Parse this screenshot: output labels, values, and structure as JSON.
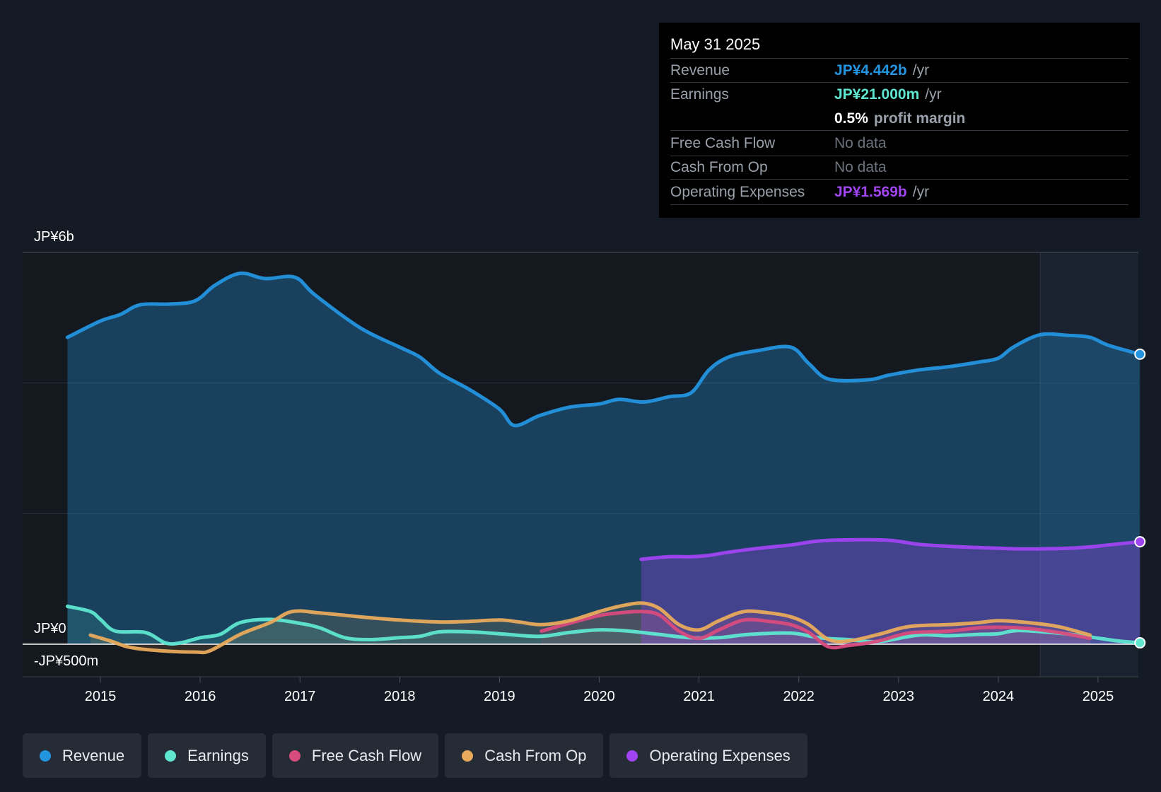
{
  "tooltip": {
    "date": "May 31 2025",
    "rows": {
      "revenue": {
        "label": "Revenue",
        "value": "JP¥4.442b",
        "unit": "/yr"
      },
      "earnings": {
        "label": "Earnings",
        "value": "JP¥21.000m",
        "unit": "/yr"
      },
      "margin": {
        "value": "0.5%",
        "unit": "profit margin"
      },
      "fcf": {
        "label": "Free Cash Flow",
        "value": "No data"
      },
      "cfo": {
        "label": "Cash From Op",
        "value": "No data"
      },
      "opex": {
        "label": "Operating Expenses",
        "value": "JP¥1.569b",
        "unit": "/yr"
      }
    }
  },
  "legend": {
    "revenue": "Revenue",
    "earnings": "Earnings",
    "fcf": "Free Cash Flow",
    "cfo": "Cash From Op",
    "opex": "Operating Expenses"
  },
  "colors": {
    "revenue": "#2394df",
    "earnings": "#5ee6d0",
    "fcf": "#d84b7d",
    "cfo": "#e8aa5c",
    "opex": "#a044f2"
  },
  "chart_data": {
    "type": "line",
    "title": "",
    "unit": "JP¥ billions",
    "y_tick_labels": [
      "JP¥6b",
      "JP¥0",
      "-JP¥500m"
    ],
    "y_ticks": [
      6,
      0,
      -0.5
    ],
    "ylim": [
      -0.5,
      6
    ],
    "xlim": [
      2014.65,
      2025.42
    ],
    "x_tick_labels": [
      "2015",
      "2016",
      "2017",
      "2018",
      "2019",
      "2020",
      "2021",
      "2022",
      "2023",
      "2024",
      "2025"
    ],
    "x_ticks": [
      2015,
      2016,
      2017,
      2018,
      2019,
      2020,
      2021,
      2022,
      2023,
      2024,
      2025
    ],
    "forecast_start": 2024.42,
    "series": [
      {
        "key": "revenue",
        "name": "Revenue",
        "x": [
          2014.67,
          2015.0,
          2015.2,
          2015.4,
          2015.7,
          2015.95,
          2016.15,
          2016.4,
          2016.65,
          2016.95,
          2017.15,
          2017.6,
          2018.0,
          2018.2,
          2018.4,
          2018.7,
          2019.0,
          2019.15,
          2019.4,
          2019.7,
          2020.0,
          2020.2,
          2020.45,
          2020.7,
          2020.92,
          2021.1,
          2021.3,
          2021.6,
          2021.92,
          2022.1,
          2022.3,
          2022.7,
          2022.9,
          2023.2,
          2023.5,
          2023.8,
          2024.0,
          2024.15,
          2024.42,
          2024.7,
          2024.92,
          2025.1,
          2025.42
        ],
        "values": [
          4.7,
          4.95,
          5.05,
          5.2,
          5.21,
          5.26,
          5.5,
          5.68,
          5.6,
          5.62,
          5.35,
          4.85,
          4.55,
          4.4,
          4.15,
          3.9,
          3.6,
          3.35,
          3.5,
          3.63,
          3.68,
          3.75,
          3.71,
          3.79,
          3.85,
          4.2,
          4.4,
          4.5,
          4.55,
          4.3,
          4.06,
          4.05,
          4.12,
          4.2,
          4.25,
          4.32,
          4.38,
          4.55,
          4.74,
          4.73,
          4.7,
          4.58,
          4.442
        ]
      },
      {
        "key": "earnings",
        "name": "Earnings",
        "x": [
          2014.67,
          2014.9,
          2015.0,
          2015.15,
          2015.45,
          2015.65,
          2015.8,
          2016.0,
          2016.2,
          2016.4,
          2016.7,
          2017.0,
          2017.2,
          2017.45,
          2017.7,
          2018.0,
          2018.2,
          2018.4,
          2018.7,
          2019.0,
          2019.4,
          2019.7,
          2020.0,
          2020.3,
          2020.6,
          2020.9,
          2021.2,
          2021.5,
          2021.92,
          2022.2,
          2022.5,
          2022.8,
          2023.2,
          2023.5,
          2023.8,
          2024.0,
          2024.2,
          2024.6,
          2024.92,
          2025.2,
          2025.42
        ],
        "values": [
          0.58,
          0.5,
          0.38,
          0.2,
          0.18,
          0.02,
          0.02,
          0.1,
          0.15,
          0.33,
          0.38,
          0.32,
          0.25,
          0.1,
          0.07,
          0.1,
          0.12,
          0.19,
          0.19,
          0.16,
          0.12,
          0.18,
          0.22,
          0.2,
          0.15,
          0.1,
          0.1,
          0.15,
          0.17,
          0.1,
          0.07,
          0.04,
          0.14,
          0.13,
          0.15,
          0.16,
          0.21,
          0.17,
          0.11,
          0.05,
          0.021
        ]
      },
      {
        "key": "fcf",
        "name": "Free Cash Flow",
        "x": [
          2019.42,
          2019.7,
          2020.0,
          2020.2,
          2020.42,
          2020.6,
          2020.8,
          2021.0,
          2021.2,
          2021.45,
          2021.7,
          2021.92,
          2022.1,
          2022.3,
          2022.5,
          2022.8,
          2023.1,
          2023.5,
          2023.8,
          2024.0,
          2024.3,
          2024.6,
          2024.92
        ],
        "values": [
          0.2,
          0.32,
          0.44,
          0.48,
          0.5,
          0.45,
          0.2,
          0.09,
          0.22,
          0.37,
          0.35,
          0.3,
          0.18,
          -0.04,
          -0.02,
          0.05,
          0.17,
          0.2,
          0.25,
          0.26,
          0.24,
          0.18,
          0.09
        ]
      },
      {
        "key": "cfo",
        "name": "Cash From Op",
        "x": [
          2014.9,
          2015.1,
          2015.3,
          2015.6,
          2015.95,
          2016.1,
          2016.4,
          2016.7,
          2016.92,
          2017.2,
          2017.6,
          2018.0,
          2018.4,
          2018.7,
          2019.0,
          2019.2,
          2019.42,
          2019.7,
          2020.0,
          2020.2,
          2020.42,
          2020.6,
          2020.8,
          2021.0,
          2021.2,
          2021.45,
          2021.7,
          2021.92,
          2022.1,
          2022.3,
          2022.5,
          2022.8,
          2023.1,
          2023.5,
          2023.8,
          2024.0,
          2024.3,
          2024.6,
          2024.92
        ],
        "values": [
          0.14,
          0.05,
          -0.05,
          -0.1,
          -0.12,
          -0.1,
          0.15,
          0.33,
          0.5,
          0.48,
          0.42,
          0.37,
          0.34,
          0.35,
          0.37,
          0.34,
          0.3,
          0.36,
          0.5,
          0.58,
          0.63,
          0.55,
          0.3,
          0.22,
          0.36,
          0.5,
          0.48,
          0.42,
          0.3,
          0.07,
          0.05,
          0.15,
          0.27,
          0.3,
          0.33,
          0.36,
          0.33,
          0.27,
          0.14
        ]
      },
      {
        "key": "opex",
        "name": "Operating Expenses",
        "x": [
          2020.42,
          2020.7,
          2020.92,
          2021.1,
          2021.3,
          2021.6,
          2021.92,
          2022.2,
          2022.6,
          2022.92,
          2023.2,
          2023.5,
          2023.8,
          2024.0,
          2024.2,
          2024.42,
          2024.7,
          2024.92,
          2025.1,
          2025.42
        ],
        "values": [
          1.3,
          1.34,
          1.34,
          1.36,
          1.41,
          1.47,
          1.52,
          1.58,
          1.6,
          1.59,
          1.53,
          1.5,
          1.48,
          1.47,
          1.46,
          1.46,
          1.47,
          1.49,
          1.52,
          1.569
        ]
      }
    ]
  }
}
